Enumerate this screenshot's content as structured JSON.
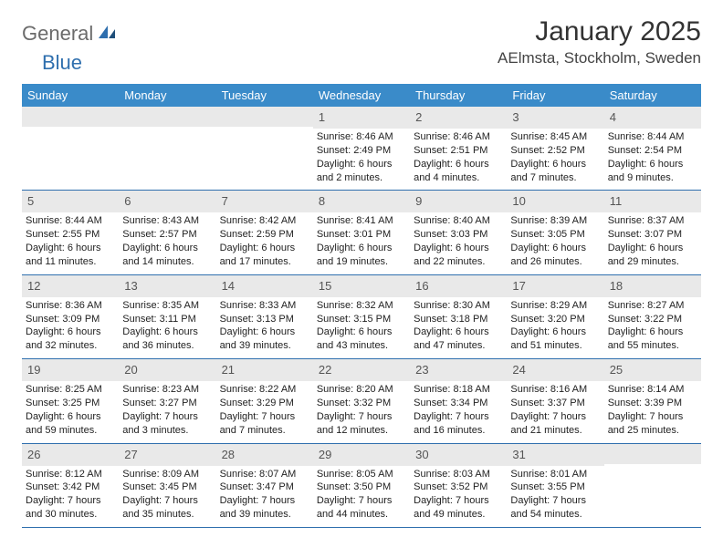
{
  "logo": {
    "part1": "General",
    "part2": "Blue"
  },
  "title": "January 2025",
  "location": "AElmsta, Stockholm, Sweden",
  "theme": {
    "header_bg": "#3a8bc9",
    "header_fg": "#ffffff",
    "daynum_bg": "#e9e9e9",
    "daynum_fg": "#555555",
    "rule_color": "#2f6fae",
    "body_text": "#222222",
    "logo_gray": "#6b6b6b",
    "logo_blue": "#2f6fae"
  },
  "days_of_week": [
    "Sunday",
    "Monday",
    "Tuesday",
    "Wednesday",
    "Thursday",
    "Friday",
    "Saturday"
  ],
  "weeks": [
    [
      {
        "n": "",
        "lines": [
          "",
          "",
          "",
          ""
        ]
      },
      {
        "n": "",
        "lines": [
          "",
          "",
          "",
          ""
        ]
      },
      {
        "n": "",
        "lines": [
          "",
          "",
          "",
          ""
        ]
      },
      {
        "n": "1",
        "lines": [
          "Sunrise: 8:46 AM",
          "Sunset: 2:49 PM",
          "Daylight: 6 hours",
          "and 2 minutes."
        ]
      },
      {
        "n": "2",
        "lines": [
          "Sunrise: 8:46 AM",
          "Sunset: 2:51 PM",
          "Daylight: 6 hours",
          "and 4 minutes."
        ]
      },
      {
        "n": "3",
        "lines": [
          "Sunrise: 8:45 AM",
          "Sunset: 2:52 PM",
          "Daylight: 6 hours",
          "and 7 minutes."
        ]
      },
      {
        "n": "4",
        "lines": [
          "Sunrise: 8:44 AM",
          "Sunset: 2:54 PM",
          "Daylight: 6 hours",
          "and 9 minutes."
        ]
      }
    ],
    [
      {
        "n": "5",
        "lines": [
          "Sunrise: 8:44 AM",
          "Sunset: 2:55 PM",
          "Daylight: 6 hours",
          "and 11 minutes."
        ]
      },
      {
        "n": "6",
        "lines": [
          "Sunrise: 8:43 AM",
          "Sunset: 2:57 PM",
          "Daylight: 6 hours",
          "and 14 minutes."
        ]
      },
      {
        "n": "7",
        "lines": [
          "Sunrise: 8:42 AM",
          "Sunset: 2:59 PM",
          "Daylight: 6 hours",
          "and 17 minutes."
        ]
      },
      {
        "n": "8",
        "lines": [
          "Sunrise: 8:41 AM",
          "Sunset: 3:01 PM",
          "Daylight: 6 hours",
          "and 19 minutes."
        ]
      },
      {
        "n": "9",
        "lines": [
          "Sunrise: 8:40 AM",
          "Sunset: 3:03 PM",
          "Daylight: 6 hours",
          "and 22 minutes."
        ]
      },
      {
        "n": "10",
        "lines": [
          "Sunrise: 8:39 AM",
          "Sunset: 3:05 PM",
          "Daylight: 6 hours",
          "and 26 minutes."
        ]
      },
      {
        "n": "11",
        "lines": [
          "Sunrise: 8:37 AM",
          "Sunset: 3:07 PM",
          "Daylight: 6 hours",
          "and 29 minutes."
        ]
      }
    ],
    [
      {
        "n": "12",
        "lines": [
          "Sunrise: 8:36 AM",
          "Sunset: 3:09 PM",
          "Daylight: 6 hours",
          "and 32 minutes."
        ]
      },
      {
        "n": "13",
        "lines": [
          "Sunrise: 8:35 AM",
          "Sunset: 3:11 PM",
          "Daylight: 6 hours",
          "and 36 minutes."
        ]
      },
      {
        "n": "14",
        "lines": [
          "Sunrise: 8:33 AM",
          "Sunset: 3:13 PM",
          "Daylight: 6 hours",
          "and 39 minutes."
        ]
      },
      {
        "n": "15",
        "lines": [
          "Sunrise: 8:32 AM",
          "Sunset: 3:15 PM",
          "Daylight: 6 hours",
          "and 43 minutes."
        ]
      },
      {
        "n": "16",
        "lines": [
          "Sunrise: 8:30 AM",
          "Sunset: 3:18 PM",
          "Daylight: 6 hours",
          "and 47 minutes."
        ]
      },
      {
        "n": "17",
        "lines": [
          "Sunrise: 8:29 AM",
          "Sunset: 3:20 PM",
          "Daylight: 6 hours",
          "and 51 minutes."
        ]
      },
      {
        "n": "18",
        "lines": [
          "Sunrise: 8:27 AM",
          "Sunset: 3:22 PM",
          "Daylight: 6 hours",
          "and 55 minutes."
        ]
      }
    ],
    [
      {
        "n": "19",
        "lines": [
          "Sunrise: 8:25 AM",
          "Sunset: 3:25 PM",
          "Daylight: 6 hours",
          "and 59 minutes."
        ]
      },
      {
        "n": "20",
        "lines": [
          "Sunrise: 8:23 AM",
          "Sunset: 3:27 PM",
          "Daylight: 7 hours",
          "and 3 minutes."
        ]
      },
      {
        "n": "21",
        "lines": [
          "Sunrise: 8:22 AM",
          "Sunset: 3:29 PM",
          "Daylight: 7 hours",
          "and 7 minutes."
        ]
      },
      {
        "n": "22",
        "lines": [
          "Sunrise: 8:20 AM",
          "Sunset: 3:32 PM",
          "Daylight: 7 hours",
          "and 12 minutes."
        ]
      },
      {
        "n": "23",
        "lines": [
          "Sunrise: 8:18 AM",
          "Sunset: 3:34 PM",
          "Daylight: 7 hours",
          "and 16 minutes."
        ]
      },
      {
        "n": "24",
        "lines": [
          "Sunrise: 8:16 AM",
          "Sunset: 3:37 PM",
          "Daylight: 7 hours",
          "and 21 minutes."
        ]
      },
      {
        "n": "25",
        "lines": [
          "Sunrise: 8:14 AM",
          "Sunset: 3:39 PM",
          "Daylight: 7 hours",
          "and 25 minutes."
        ]
      }
    ],
    [
      {
        "n": "26",
        "lines": [
          "Sunrise: 8:12 AM",
          "Sunset: 3:42 PM",
          "Daylight: 7 hours",
          "and 30 minutes."
        ]
      },
      {
        "n": "27",
        "lines": [
          "Sunrise: 8:09 AM",
          "Sunset: 3:45 PM",
          "Daylight: 7 hours",
          "and 35 minutes."
        ]
      },
      {
        "n": "28",
        "lines": [
          "Sunrise: 8:07 AM",
          "Sunset: 3:47 PM",
          "Daylight: 7 hours",
          "and 39 minutes."
        ]
      },
      {
        "n": "29",
        "lines": [
          "Sunrise: 8:05 AM",
          "Sunset: 3:50 PM",
          "Daylight: 7 hours",
          "and 44 minutes."
        ]
      },
      {
        "n": "30",
        "lines": [
          "Sunrise: 8:03 AM",
          "Sunset: 3:52 PM",
          "Daylight: 7 hours",
          "and 49 minutes."
        ]
      },
      {
        "n": "31",
        "lines": [
          "Sunrise: 8:01 AM",
          "Sunset: 3:55 PM",
          "Daylight: 7 hours",
          "and 54 minutes."
        ]
      },
      {
        "n": "",
        "lines": [
          "",
          "",
          "",
          ""
        ]
      }
    ]
  ]
}
